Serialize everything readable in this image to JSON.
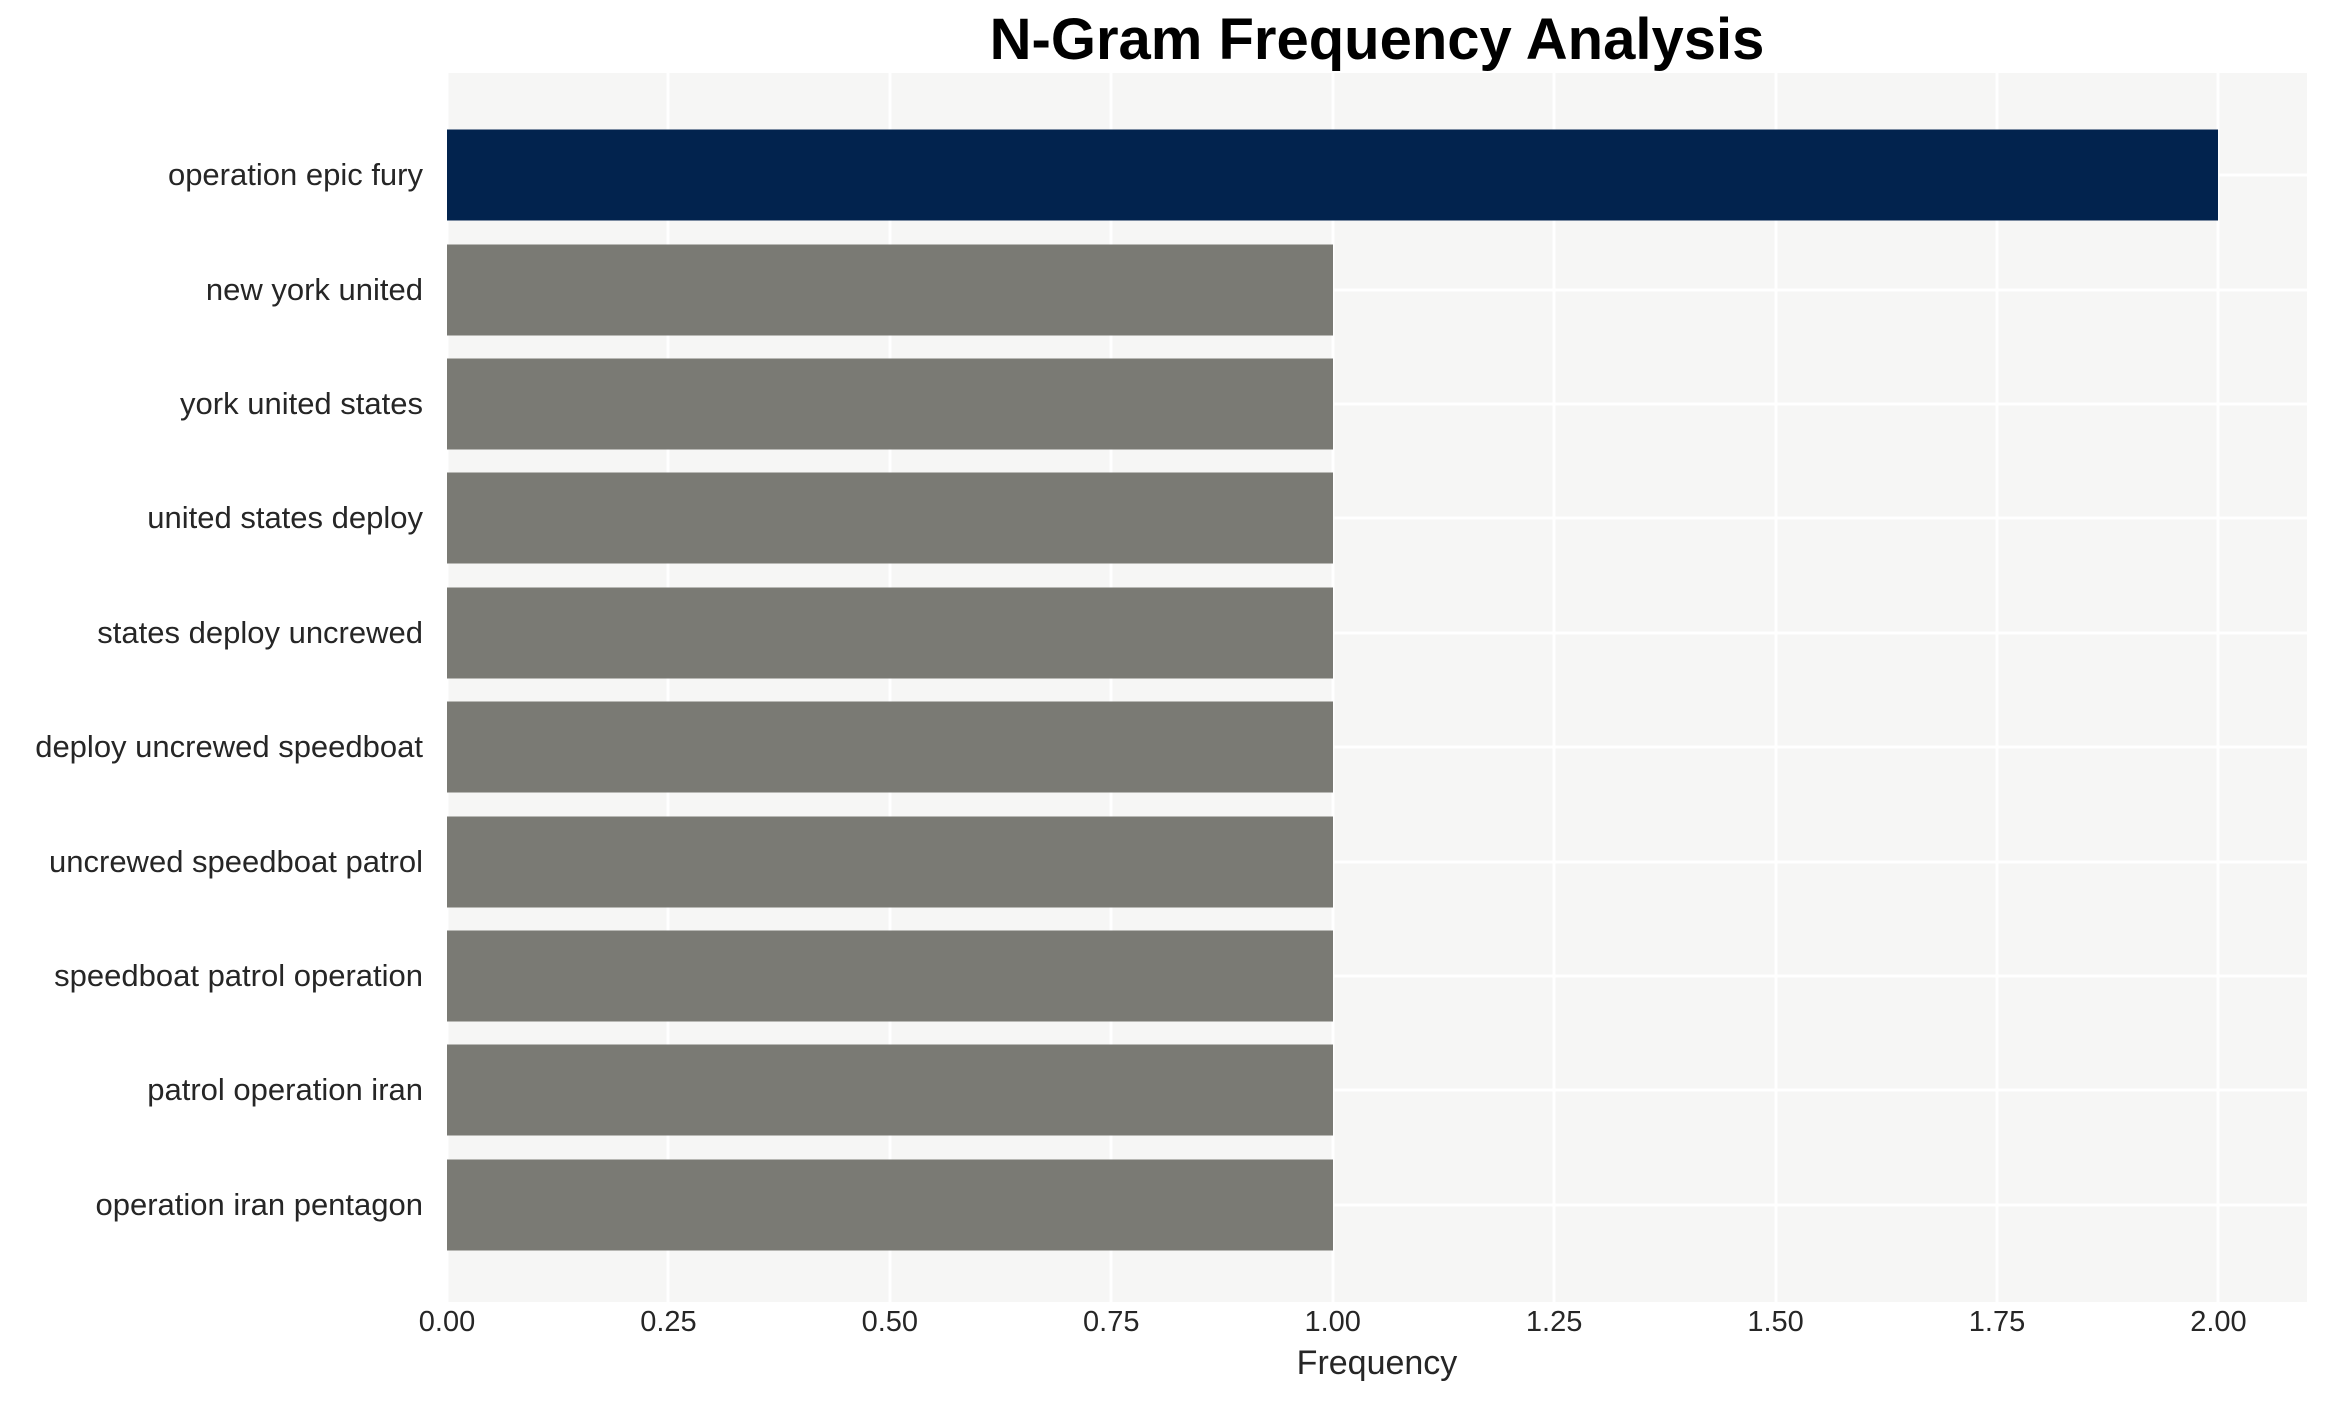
{
  "chart_data": {
    "type": "bar",
    "orientation": "horizontal",
    "title": "N-Gram Frequency Analysis",
    "xlabel": "Frequency",
    "ylabel": "",
    "categories": [
      "operation epic fury",
      "new york united",
      "york united states",
      "united states deploy",
      "states deploy uncrewed",
      "deploy uncrewed speedboat",
      "uncrewed speedboat patrol",
      "speedboat patrol operation",
      "patrol operation iran",
      "operation iran pentagon"
    ],
    "values": [
      2,
      1,
      1,
      1,
      1,
      1,
      1,
      1,
      1,
      1
    ],
    "bar_colors": [
      "#02234e",
      "#7a7a74",
      "#7a7a74",
      "#7a7a74",
      "#7a7a74",
      "#7a7a74",
      "#7a7a74",
      "#7a7a74",
      "#7a7a74",
      "#7a7a74"
    ],
    "x_ticks": [
      {
        "value": 0.0,
        "label": "0.00"
      },
      {
        "value": 0.25,
        "label": "0.25"
      },
      {
        "value": 0.5,
        "label": "0.50"
      },
      {
        "value": 0.75,
        "label": "0.75"
      },
      {
        "value": 1.0,
        "label": "1.00"
      },
      {
        "value": 1.25,
        "label": "1.25"
      },
      {
        "value": 1.5,
        "label": "1.50"
      },
      {
        "value": 1.75,
        "label": "1.75"
      },
      {
        "value": 2.0,
        "label": "2.00"
      }
    ],
    "xlim": [
      0,
      2.0
    ],
    "x_margin_factor": 1.05,
    "grid": "on",
    "legend": "none",
    "panel_color": "#f6f6f5",
    "gridline_color": "#ffffff",
    "text_color": "#262626",
    "title_color": "#000000"
  }
}
